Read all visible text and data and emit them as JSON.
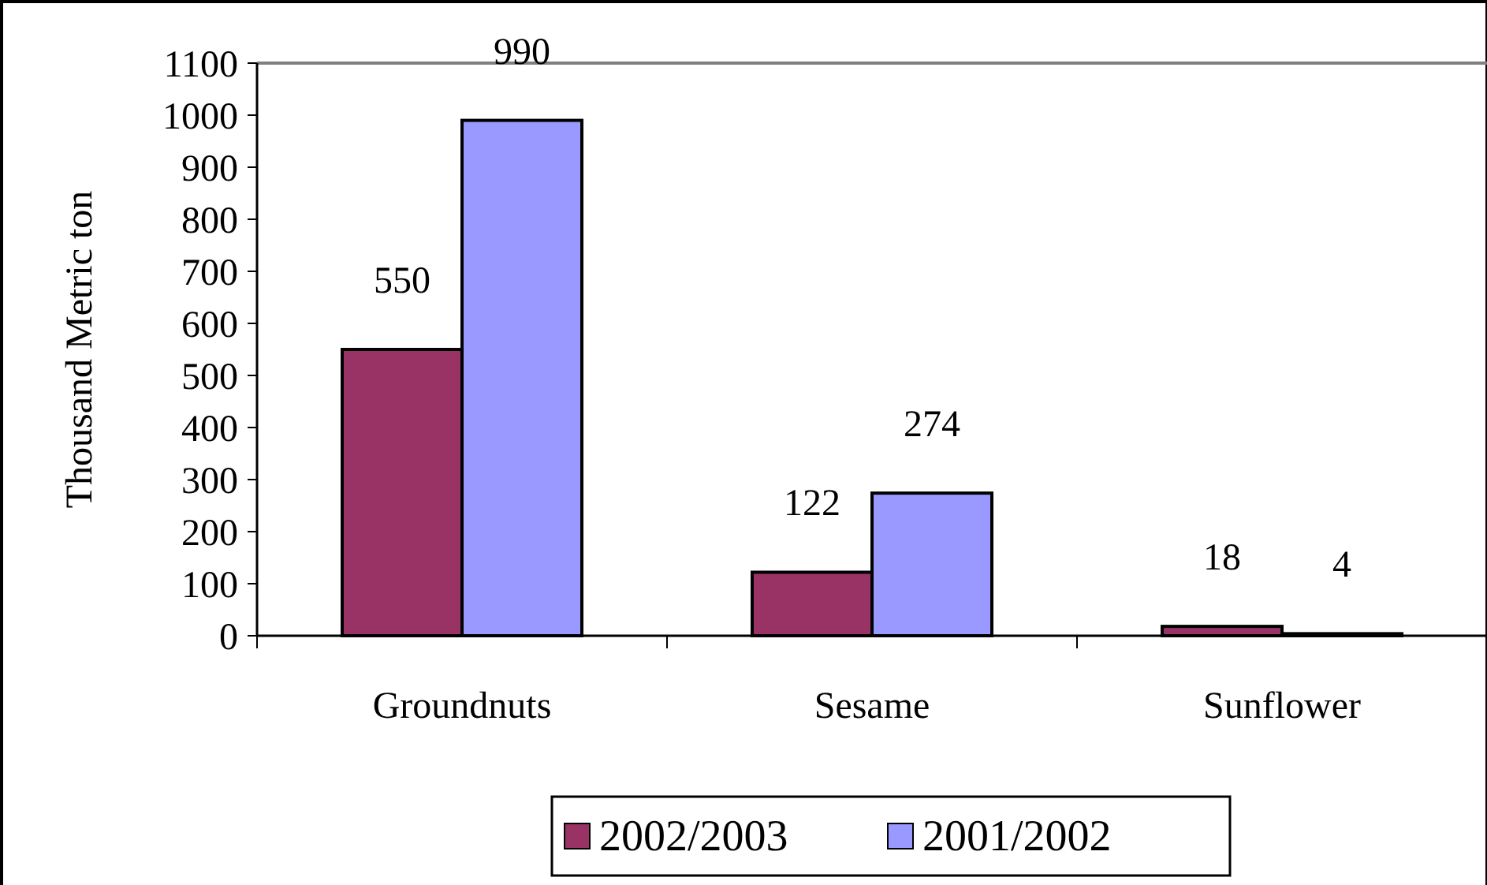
{
  "chart_data": {
    "type": "bar",
    "ylabel": "Thousand Metric ton",
    "categories": [
      "Groundnuts",
      "Sesame",
      "Sunflower"
    ],
    "series": [
      {
        "name": "2002/2003",
        "color": "#993366",
        "values": [
          550,
          122,
          18
        ]
      },
      {
        "name": "2001/2002",
        "color": "#9999ff",
        "values": [
          990,
          274,
          4
        ]
      }
    ],
    "ylim": [
      0,
      1100
    ],
    "yticks": [
      0,
      100,
      200,
      300,
      400,
      500,
      600,
      700,
      800,
      900,
      1000,
      1100
    ],
    "data_labels": true,
    "legend": "bottom",
    "grid": false
  }
}
